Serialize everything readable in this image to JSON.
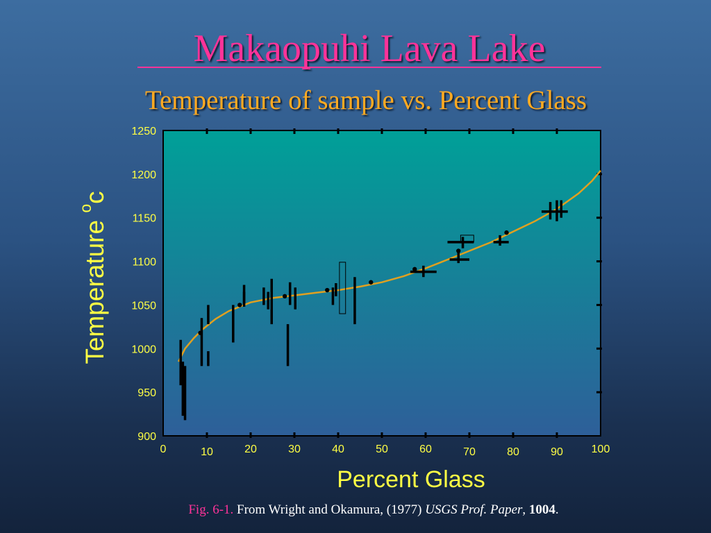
{
  "title": "Makaopuhi Lava Lake",
  "subtitle": "Temperature of sample vs. Percent Glass",
  "caption": {
    "fig": "Fig. 6-1.",
    "text": "From Wright and Okamura, (1977)",
    "journal": "USGS Prof. Paper",
    "comma": ",",
    "volume": "1004",
    "period": "."
  },
  "colors": {
    "title": "#ff3399",
    "subtitle": "#ffaa22",
    "axis_text": "#ffff44",
    "plot_top": "#00a098",
    "plot_bottom": "#2e5f99",
    "curve": "#e0a020",
    "marks": "#000000"
  },
  "chart_data": {
    "type": "scatter",
    "xlabel": "Percent Glass",
    "ylabel": "Temperature",
    "ylabel_sup": "o",
    "ylabel_unit": "c",
    "xlim": [
      0,
      100
    ],
    "ylim": [
      900,
      1250
    ],
    "xticks": [
      0,
      10,
      20,
      30,
      40,
      50,
      60,
      70,
      80,
      90,
      100
    ],
    "yticks": [
      900,
      950,
      1000,
      1050,
      1100,
      1150,
      1200,
      1250
    ],
    "grid": false,
    "points": [
      [
        8.5,
        1018
      ],
      [
        17.5,
        1050
      ],
      [
        27.8,
        1060
      ],
      [
        37.5,
        1067
      ],
      [
        47.5,
        1076
      ],
      [
        57.5,
        1091
      ],
      [
        67.5,
        1112
      ],
      [
        78.5,
        1133
      ]
    ],
    "vertical_bars": [
      {
        "x": 4.0,
        "y": [
          958,
          1010
        ]
      },
      {
        "x": 4.5,
        "y": [
          923,
          985
        ]
      },
      {
        "x": 5.0,
        "y": [
          918,
          980
        ]
      },
      {
        "x": 8.8,
        "y": [
          980,
          1035
        ]
      },
      {
        "x": 10.3,
        "y": [
          1028,
          1050
        ]
      },
      {
        "x": 10.3,
        "y": [
          980,
          997
        ]
      },
      {
        "x": 16.0,
        "y": [
          1007,
          1050
        ]
      },
      {
        "x": 18.5,
        "y": [
          1052,
          1073
        ]
      },
      {
        "x": 18.5,
        "y": [
          1048,
          1065
        ]
      },
      {
        "x": 23.0,
        "y": [
          1050,
          1070
        ]
      },
      {
        "x": 24.0,
        "y": [
          1045,
          1065
        ]
      },
      {
        "x": 24.8,
        "y": [
          1028,
          1080
        ]
      },
      {
        "x": 28.5,
        "y": [
          980,
          1028
        ]
      },
      {
        "x": 29.0,
        "y": [
          1050,
          1076
        ]
      },
      {
        "x": 30.2,
        "y": [
          1045,
          1070
        ]
      },
      {
        "x": 38.8,
        "y": [
          1050,
          1070
        ]
      },
      {
        "x": 39.5,
        "y": [
          1060,
          1075
        ]
      },
      {
        "x": 43.8,
        "y": [
          1028,
          1082
        ]
      },
      {
        "x": 59.5,
        "y": [
          1082,
          1095
        ]
      },
      {
        "x": 67.5,
        "y": [
          1098,
          1110
        ]
      },
      {
        "x": 68.5,
        "y": [
          1115,
          1128
        ]
      },
      {
        "x": 77.0,
        "y": [
          1118,
          1130
        ]
      },
      {
        "x": 88.5,
        "y": [
          1148,
          1168
        ]
      },
      {
        "x": 90.0,
        "y": [
          1146,
          1170
        ]
      },
      {
        "x": 91.0,
        "y": [
          1150,
          1170
        ]
      }
    ],
    "horizontal_bars": [
      {
        "y": 1088,
        "x": [
          56.5,
          62.5
        ]
      },
      {
        "y": 1102,
        "x": [
          65.5,
          70.0
        ]
      },
      {
        "y": 1122,
        "x": [
          65.0,
          71.0
        ]
      },
      {
        "y": 1157,
        "x": [
          86.5,
          92.5
        ]
      },
      {
        "y": 1122,
        "x": [
          75.5,
          79.0
        ]
      }
    ],
    "open_boxes": [
      {
        "x": [
          40.3,
          41.7
        ],
        "y": [
          1040,
          1099
        ]
      },
      {
        "x": [
          68.0,
          71.0
        ],
        "y": [
          1122,
          1130
        ]
      }
    ],
    "curve": [
      [
        3.5,
        985
      ],
      [
        5,
        1000
      ],
      [
        7,
        1012
      ],
      [
        9,
        1022
      ],
      [
        12,
        1034
      ],
      [
        15,
        1043
      ],
      [
        20,
        1053
      ],
      [
        25,
        1058
      ],
      [
        30,
        1061
      ],
      [
        35,
        1064
      ],
      [
        40,
        1067
      ],
      [
        45,
        1071
      ],
      [
        50,
        1076
      ],
      [
        55,
        1083
      ],
      [
        60,
        1092
      ],
      [
        65,
        1102
      ],
      [
        70,
        1112
      ],
      [
        75,
        1122
      ],
      [
        80,
        1134
      ],
      [
        85,
        1146
      ],
      [
        90,
        1160
      ],
      [
        95,
        1178
      ],
      [
        98,
        1192
      ],
      [
        100,
        1204
      ]
    ]
  }
}
